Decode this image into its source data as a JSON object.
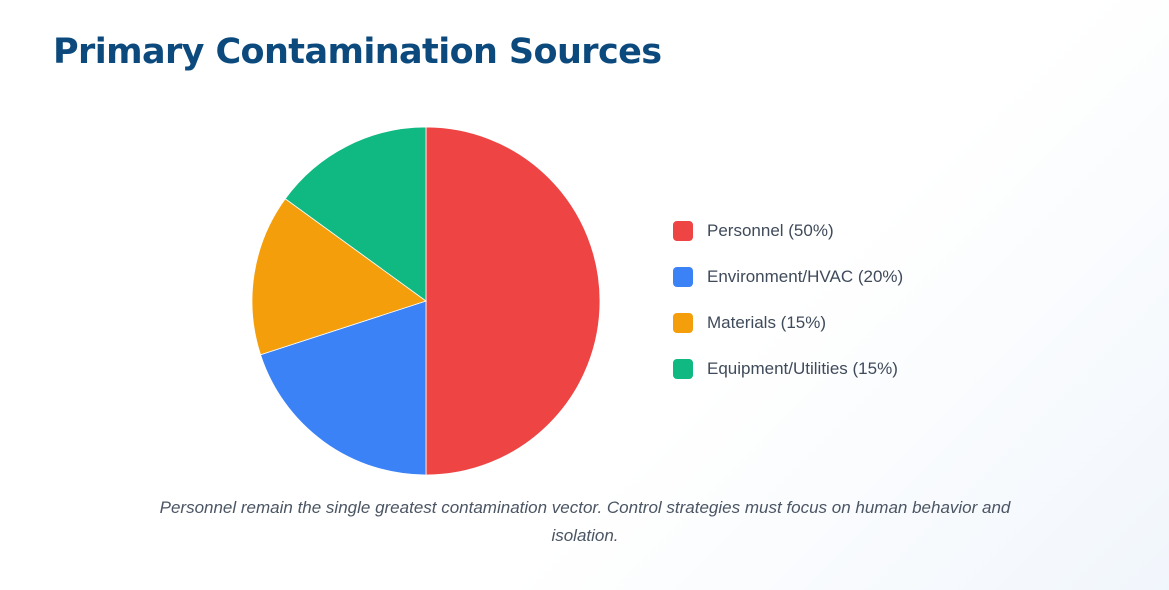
{
  "title": "Primary Contamination Sources",
  "title_color": "#0c4a7e",
  "caption": "Personnel remain the single greatest contamination vector. Control strategies must focus on human behavior and isolation.",
  "chart_data": {
    "type": "pie",
    "categories": [
      "Personnel",
      "Environment/HVAC",
      "Materials",
      "Equipment/Utilities"
    ],
    "values": [
      50,
      20,
      15,
      15
    ],
    "colors": [
      "#ef4444",
      "#3b82f6",
      "#f59e0b",
      "#10b981"
    ],
    "start_angle_deg": 0,
    "direction": "clockwise",
    "legend": {
      "position": "right",
      "labels": [
        "Personnel (50%)",
        "Environment/HVAC (20%)",
        "Materials (15%)",
        "Equipment/Utilities (15%)"
      ]
    }
  }
}
